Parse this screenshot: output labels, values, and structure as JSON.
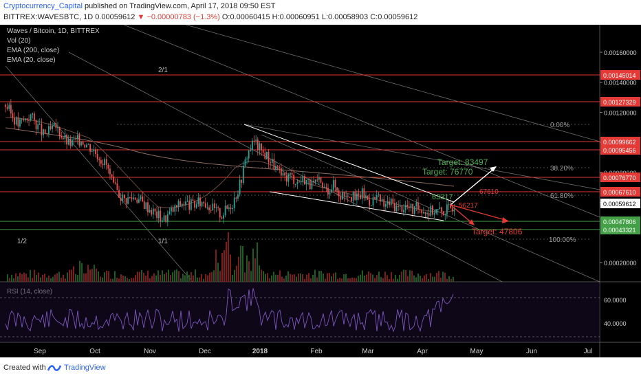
{
  "header": {
    "author": "Cryptocurrency_Capital",
    "published": "published on TradingView.com, April 17, 2018 09:50 EST",
    "symbol": "BITTREX:WAVESBTC, 1D",
    "last": "0.00059612",
    "change": "−0.00000783 (−1.3%)",
    "ohlc": {
      "o": "O:0.00060415",
      "h": "H:0.00060951",
      "l": "L:0.00058903",
      "c": "C:0.00059612"
    }
  },
  "legend": [
    "Waves / Bitcoin, 1D, BITTREX",
    "Vol (20)",
    "EMA (200, close)",
    "EMA (20, close)"
  ],
  "rsi_label": "RSI (14, close)",
  "footer": {
    "created_with": "Created with",
    "brand": "TradingView"
  },
  "colors": {
    "background": "#000000",
    "up": "#26a69a",
    "down": "#ef5350",
    "level_line": "#e53935",
    "target_up": "#4caf50",
    "target_down": "#e53935",
    "rsi": "#7e57c2"
  },
  "chart_data": {
    "type": "candlestick",
    "x_ticks": [
      "Sep",
      "Oct",
      "Nov",
      "Dec",
      "2018",
      "Feb",
      "Mar",
      "Apr",
      "May",
      "Jun",
      "Jul"
    ],
    "y_ticks": [
      "0.00160000",
      "0.00140000",
      "0.00120000",
      "0.00100000",
      "0.00080000",
      "0.00060000",
      "0.00020000"
    ],
    "horizontal_levels": [
      {
        "value": "0.00145014",
        "color": "#e53935"
      },
      {
        "value": "0.00127329",
        "color": "#e53935"
      },
      {
        "value": "0.00099662",
        "color": "#e53935"
      },
      {
        "value": "0.00095456",
        "color": "#e53935"
      },
      {
        "value": "0.00076770",
        "color": "#e53935"
      },
      {
        "value": "0.00067610",
        "color": "#e53935"
      },
      {
        "value": "0.00059612",
        "color": "#ffffff"
      },
      {
        "value": "0.00047806",
        "color": "#43a047"
      },
      {
        "value": "0.00043321",
        "color": "#43a047"
      }
    ],
    "fib_levels": [
      "0.00%",
      "38.20%",
      "61.80%",
      "100.00%"
    ],
    "fan_labels": [
      "2/1",
      "1/1",
      "1/2"
    ],
    "annotations": [
      "Target: 83497",
      "Target: 76770",
      "67610",
      "63317",
      "56217",
      "Target: 47806"
    ],
    "rsi_ticks": [
      "60.0000",
      "40.0000"
    ],
    "close_path": [
      [
        0,
        0.00125
      ],
      [
        7,
        0.00112
      ],
      [
        14,
        0.00118
      ],
      [
        21,
        0.00105
      ],
      [
        28,
        0.0011
      ],
      [
        35,
        0.00099
      ],
      [
        42,
        0.00102
      ],
      [
        49,
        0.00095
      ],
      [
        56,
        0.00085
      ],
      [
        60,
        0.0007
      ],
      [
        66,
        0.00062
      ],
      [
        72,
        0.00064
      ],
      [
        78,
        0.00058
      ],
      [
        84,
        0.00052
      ],
      [
        88,
        0.00049
      ],
      [
        92,
        0.00054
      ],
      [
        98,
        0.0006
      ],
      [
        104,
        0.00058
      ],
      [
        110,
        0.00061
      ],
      [
        116,
        0.00055
      ],
      [
        120,
        0.00052
      ],
      [
        126,
        0.0006
      ],
      [
        130,
        0.00072
      ],
      [
        134,
        0.00092
      ],
      [
        138,
        0.00101
      ],
      [
        142,
        0.00094
      ],
      [
        146,
        0.0009
      ],
      [
        150,
        0.00083
      ],
      [
        154,
        0.00076
      ],
      [
        158,
        0.00078
      ],
      [
        162,
        0.00074
      ],
      [
        166,
        0.00076
      ],
      [
        170,
        0.00071
      ],
      [
        174,
        0.00073
      ],
      [
        178,
        0.00068
      ],
      [
        182,
        0.00072
      ],
      [
        186,
        0.00065
      ],
      [
        190,
        0.00067
      ],
      [
        194,
        0.00062
      ],
      [
        198,
        0.00066
      ],
      [
        202,
        0.00061
      ],
      [
        206,
        0.00063
      ],
      [
        210,
        0.00058
      ],
      [
        214,
        0.0006
      ],
      [
        218,
        0.00056
      ],
      [
        222,
        0.00058
      ],
      [
        226,
        0.00055
      ],
      [
        230,
        0.00057
      ],
      [
        234,
        0.00054
      ],
      [
        238,
        0.00055
      ],
      [
        242,
        0.00054
      ],
      [
        246,
        0.00056
      ],
      [
        250,
        0.0006
      ]
    ]
  }
}
